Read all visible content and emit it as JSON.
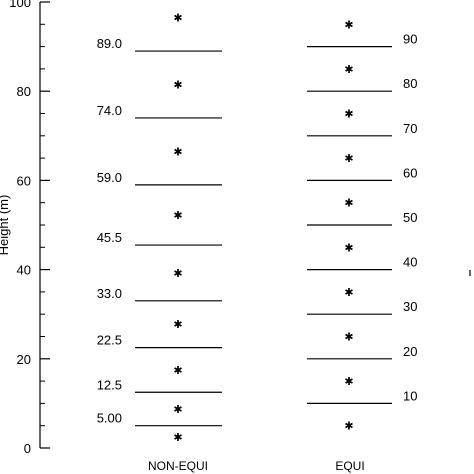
{
  "chart_data": {
    "type": "scatter",
    "ylabel": "Height (m)",
    "ylim": [
      0,
      100
    ],
    "y_ticks": [
      "0",
      "20",
      "40",
      "60",
      "80",
      "100"
    ],
    "categories": [
      "NON-EQUI",
      "EQUI"
    ],
    "groups": [
      {
        "name": "NON-EQUI",
        "level_values": [
          5.0,
          12.5,
          22.5,
          33.0,
          45.5,
          59.0,
          74.0,
          89.0
        ],
        "level_labels": [
          "5.00",
          "12.5",
          "22.5",
          "33.0",
          "45.5",
          "59.0",
          "74.0",
          "89.0"
        ],
        "label_side": "left",
        "points": [
          2.5,
          8.75,
          17.5,
          27.75,
          39.25,
          52.25,
          66.5,
          81.5,
          96.5
        ]
      },
      {
        "name": "EQUI",
        "level_values": [
          10,
          20,
          30,
          40,
          50,
          60,
          70,
          80,
          90
        ],
        "level_labels": [
          "10",
          "20",
          "30",
          "40",
          "50",
          "60",
          "70",
          "80",
          "90"
        ],
        "label_side": "right",
        "points": [
          5,
          15,
          25,
          35,
          45,
          55,
          65,
          75,
          85,
          95
        ]
      }
    ],
    "grid": false
  }
}
